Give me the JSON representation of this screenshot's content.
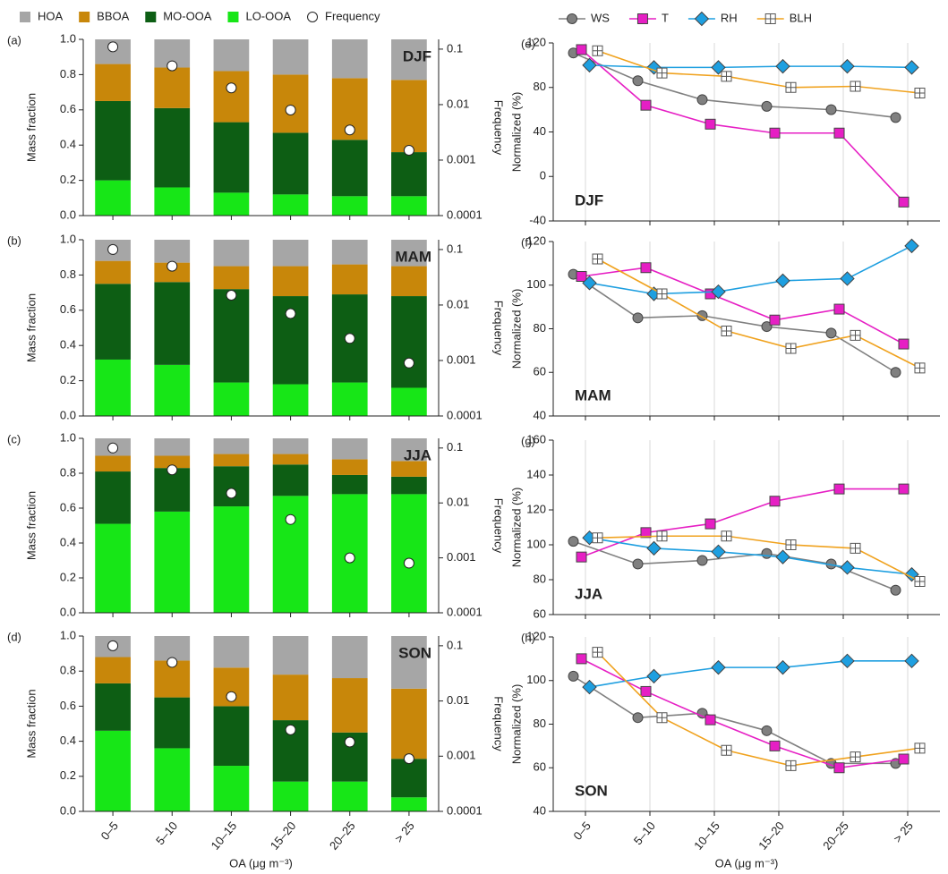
{
  "chart_data": [
    {
      "type": "bar",
      "stacked": true,
      "panel_label": "(a)",
      "annotation": "DJF",
      "ylabel": "Mass fraction",
      "y2label": "Frequency",
      "y2scale": "log",
      "categories": [
        "0–5",
        "5–10",
        "10–15",
        "15–20",
        "20–25",
        "> 25"
      ],
      "ylim": [
        0,
        1
      ],
      "yticks": [
        {
          "value": 0,
          "label": "0.0"
        },
        0.2,
        0.4,
        0.6,
        0.8,
        {
          "value": 1,
          "label": "1.0"
        }
      ],
      "y2lim": [
        0.0001,
        0.15
      ],
      "y2ticks": [
        0.0001,
        0.001,
        0.01,
        0.1
      ],
      "series": [
        {
          "name": "HOA",
          "color": "#a6a6a6",
          "values": [
            0.14,
            0.16,
            0.18,
            0.2,
            0.22,
            0.23
          ]
        },
        {
          "name": "BBOA",
          "color": "#c8870a",
          "values": [
            0.21,
            0.23,
            0.29,
            0.33,
            0.35,
            0.41
          ]
        },
        {
          "name": "MO-OOA",
          "color": "#0d5e14",
          "values": [
            0.45,
            0.45,
            0.4,
            0.35,
            0.32,
            0.25
          ]
        },
        {
          "name": "LO-OOA",
          "color": "#17e617",
          "values": [
            0.2,
            0.16,
            0.13,
            0.12,
            0.11,
            0.11
          ]
        },
        {
          "name": "Frequency",
          "type": "scatter",
          "axis": "y2",
          "color": "#ffffff",
          "values": [
            0.11,
            0.05,
            0.02,
            0.008,
            0.0035,
            0.0015
          ]
        }
      ]
    },
    {
      "type": "bar",
      "stacked": true,
      "panel_label": "(b)",
      "annotation": "MAM",
      "ylabel": "Mass fraction",
      "y2label": "Frequency",
      "y2scale": "log",
      "categories": [
        "0–5",
        "5–10",
        "10–15",
        "15–20",
        "20–25",
        "> 25"
      ],
      "ylim": [
        0,
        1
      ],
      "yticks": [
        {
          "value": 0,
          "label": "0.0"
        },
        0.2,
        0.4,
        0.6,
        0.8,
        {
          "value": 1,
          "label": "1.0"
        }
      ],
      "y2lim": [
        0.0001,
        0.15
      ],
      "y2ticks": [
        0.0001,
        0.001,
        0.01,
        0.1
      ],
      "series": [
        {
          "name": "HOA",
          "color": "#a6a6a6",
          "values": [
            0.12,
            0.13,
            0.15,
            0.15,
            0.14,
            0.15
          ]
        },
        {
          "name": "BBOA",
          "color": "#c8870a",
          "values": [
            0.13,
            0.11,
            0.13,
            0.17,
            0.17,
            0.17
          ]
        },
        {
          "name": "MO-OOA",
          "color": "#0d5e14",
          "values": [
            0.43,
            0.47,
            0.53,
            0.5,
            0.5,
            0.52
          ]
        },
        {
          "name": "LO-OOA",
          "color": "#17e617",
          "values": [
            0.32,
            0.29,
            0.19,
            0.18,
            0.19,
            0.16
          ]
        },
        {
          "name": "Frequency",
          "type": "scatter",
          "axis": "y2",
          "color": "#ffffff",
          "values": [
            0.1,
            0.05,
            0.015,
            0.007,
            0.0025,
            0.0009
          ]
        }
      ]
    },
    {
      "type": "bar",
      "stacked": true,
      "panel_label": "(c)",
      "annotation": "JJA",
      "ylabel": "Mass fraction",
      "y2label": "Frequency",
      "y2scale": "log",
      "categories": [
        "0–5",
        "5–10",
        "10–15",
        "15–20",
        "20–25",
        "> 25"
      ],
      "ylim": [
        0,
        1
      ],
      "yticks": [
        {
          "value": 0,
          "label": "0.0"
        },
        0.2,
        0.4,
        0.6,
        0.8,
        {
          "value": 1,
          "label": "1.0"
        }
      ],
      "y2lim": [
        0.0001,
        0.15
      ],
      "y2ticks": [
        0.0001,
        0.001,
        0.01,
        0.1
      ],
      "series": [
        {
          "name": "HOA",
          "color": "#a6a6a6",
          "values": [
            0.1,
            0.1,
            0.09,
            0.09,
            0.12,
            0.13
          ]
        },
        {
          "name": "BBOA",
          "color": "#c8870a",
          "values": [
            0.09,
            0.07,
            0.07,
            0.06,
            0.09,
            0.09
          ]
        },
        {
          "name": "MO-OOA",
          "color": "#0d5e14",
          "values": [
            0.3,
            0.25,
            0.23,
            0.18,
            0.11,
            0.1
          ]
        },
        {
          "name": "LO-OOA",
          "color": "#17e617",
          "values": [
            0.51,
            0.58,
            0.61,
            0.67,
            0.68,
            0.68
          ]
        },
        {
          "name": "Frequency",
          "type": "scatter",
          "axis": "y2",
          "color": "#ffffff",
          "values": [
            0.1,
            0.04,
            0.015,
            0.005,
            0.001,
            0.0008
          ]
        }
      ]
    },
    {
      "type": "bar",
      "stacked": true,
      "panel_label": "(d)",
      "annotation": "SON",
      "ylabel": "Mass fraction",
      "y2label": "Frequency",
      "y2scale": "log",
      "xlabel": "OA (μg m⁻³)",
      "categories": [
        "0–5",
        "5–10",
        "10–15",
        "15–20",
        "20–25",
        "> 25"
      ],
      "ylim": [
        0,
        1
      ],
      "yticks": [
        {
          "value": 0,
          "label": "0.0"
        },
        0.2,
        0.4,
        0.6,
        0.8,
        {
          "value": 1,
          "label": "1.0"
        }
      ],
      "y2lim": [
        0.0001,
        0.15
      ],
      "y2ticks": [
        0.0001,
        0.001,
        0.01,
        0.1
      ],
      "series": [
        {
          "name": "HOA",
          "color": "#a6a6a6",
          "values": [
            0.12,
            0.14,
            0.18,
            0.22,
            0.24,
            0.3
          ]
        },
        {
          "name": "BBOA",
          "color": "#c8870a",
          "values": [
            0.15,
            0.21,
            0.22,
            0.26,
            0.31,
            0.4
          ]
        },
        {
          "name": "MO-OOA",
          "color": "#0d5e14",
          "values": [
            0.27,
            0.29,
            0.34,
            0.35,
            0.28,
            0.22
          ]
        },
        {
          "name": "LO-OOA",
          "color": "#17e617",
          "values": [
            0.46,
            0.36,
            0.26,
            0.17,
            0.17,
            0.08
          ]
        },
        {
          "name": "Frequency",
          "type": "scatter",
          "axis": "y2",
          "color": "#ffffff",
          "values": [
            0.1,
            0.05,
            0.012,
            0.003,
            0.0018,
            0.0009
          ]
        }
      ]
    },
    {
      "type": "line",
      "panel_label": "(e)",
      "annotation": "DJF",
      "ylabel": "Normalized (%)",
      "xgrid": true,
      "categories": [
        "0–5",
        "5–10",
        "10–15",
        "15–20",
        "20–25",
        "> 25"
      ],
      "ylim": [
        -40,
        120
      ],
      "yticks": [
        -40,
        0,
        40,
        80,
        120
      ],
      "series": [
        {
          "name": "WS",
          "color": "#808080",
          "marker": "circle",
          "values": [
            111,
            86,
            69,
            63,
            60,
            53
          ]
        },
        {
          "name": "T",
          "color": "#e61fc4",
          "marker": "square",
          "values": [
            114,
            64,
            47,
            39,
            39,
            -23
          ]
        },
        {
          "name": "RH",
          "color": "#1e9fe0",
          "marker": "diamond",
          "values": [
            100,
            98,
            98,
            99,
            99,
            98
          ]
        },
        {
          "name": "BLH",
          "color": "#f0a21e",
          "marker": "square-cross",
          "values": [
            113,
            93,
            90,
            80,
            81,
            75
          ]
        }
      ]
    },
    {
      "type": "line",
      "panel_label": "(f)",
      "annotation": "MAM",
      "ylabel": "Normalized (%)",
      "xgrid": true,
      "categories": [
        "0–5",
        "5–10",
        "10–15",
        "15–20",
        "20–25",
        "> 25"
      ],
      "ylim": [
        40,
        120
      ],
      "yticks": [
        40,
        60,
        80,
        100,
        120
      ],
      "series": [
        {
          "name": "WS",
          "color": "#808080",
          "marker": "circle",
          "values": [
            105,
            85,
            86,
            81,
            78,
            60
          ]
        },
        {
          "name": "T",
          "color": "#e61fc4",
          "marker": "square",
          "values": [
            104,
            108,
            96,
            84,
            89,
            73
          ]
        },
        {
          "name": "RH",
          "color": "#1e9fe0",
          "marker": "diamond",
          "values": [
            101,
            96,
            97,
            102,
            103,
            118
          ]
        },
        {
          "name": "BLH",
          "color": "#f0a21e",
          "marker": "square-cross",
          "values": [
            112,
            96,
            79,
            71,
            77,
            62
          ]
        }
      ]
    },
    {
      "type": "line",
      "panel_label": "(g)",
      "annotation": "JJA",
      "ylabel": "Normalized (%)",
      "xgrid": true,
      "categories": [
        "0–5",
        "5–10",
        "10–15",
        "15–20",
        "20–25",
        "> 25"
      ],
      "ylim": [
        60,
        160
      ],
      "yticks": [
        60,
        80,
        100,
        120,
        140,
        160
      ],
      "series": [
        {
          "name": "WS",
          "color": "#808080",
          "marker": "circle",
          "values": [
            102,
            89,
            91,
            95,
            89,
            74
          ]
        },
        {
          "name": "T",
          "color": "#e61fc4",
          "marker": "square",
          "values": [
            93,
            107,
            112,
            125,
            132,
            132
          ]
        },
        {
          "name": "RH",
          "color": "#1e9fe0",
          "marker": "diamond",
          "values": [
            104,
            98,
            96,
            93,
            87,
            83
          ]
        },
        {
          "name": "BLH",
          "color": "#f0a21e",
          "marker": "square-cross",
          "values": [
            104,
            105,
            105,
            100,
            98,
            79
          ]
        }
      ]
    },
    {
      "type": "line",
      "panel_label": "(h)",
      "annotation": "SON",
      "ylabel": "Normalized (%)",
      "xgrid": true,
      "xlabel": "OA (μg m⁻³)",
      "categories": [
        "0–5",
        "5–10",
        "10–15",
        "15–20",
        "20–25",
        "> 25"
      ],
      "ylim": [
        40,
        120
      ],
      "yticks": [
        40,
        60,
        80,
        100,
        120
      ],
      "series": [
        {
          "name": "WS",
          "color": "#808080",
          "marker": "circle",
          "values": [
            102,
            83,
            85,
            77,
            62,
            62
          ]
        },
        {
          "name": "T",
          "color": "#e61fc4",
          "marker": "square",
          "values": [
            110,
            95,
            82,
            70,
            60,
            64
          ]
        },
        {
          "name": "RH",
          "color": "#1e9fe0",
          "marker": "diamond",
          "values": [
            97,
            102,
            106,
            106,
            109,
            109
          ]
        },
        {
          "name": "BLH",
          "color": "#f0a21e",
          "marker": "square-cross",
          "values": [
            113,
            83,
            68,
            61,
            65,
            69
          ]
        }
      ]
    }
  ]
}
